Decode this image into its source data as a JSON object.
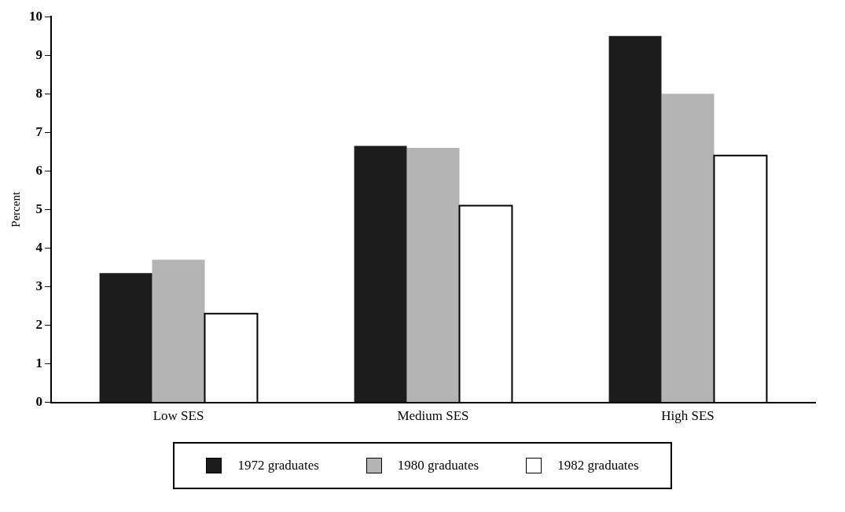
{
  "chart_data": {
    "type": "bar",
    "ylabel": "Percent",
    "categories": [
      "Low SES",
      "Medium SES",
      "High SES"
    ],
    "series": [
      {
        "name": "1972 graduates",
        "color": "#1c1c1c",
        "values": [
          3.35,
          6.65,
          9.5
        ]
      },
      {
        "name": "1980 graduates",
        "color": "#b4b4b4",
        "values": [
          3.7,
          6.6,
          8.0
        ]
      },
      {
        "name": "1982 graduates",
        "color": "#ffffff",
        "values": [
          2.3,
          5.1,
          6.4
        ]
      }
    ],
    "ylim": [
      0,
      10
    ],
    "yticks": [
      0,
      1,
      2,
      3,
      4,
      5,
      6,
      7,
      8,
      9,
      10
    ],
    "grid": false,
    "legend": "bottom"
  }
}
